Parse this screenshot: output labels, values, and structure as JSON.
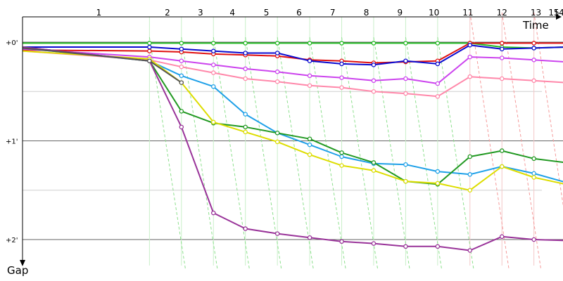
{
  "chart_data": {
    "type": "line",
    "x_axis_title": "Time",
    "y_axis_title": "Gap",
    "x_tick_labels": [
      "1",
      "2",
      "3",
      "4",
      "5",
      "6",
      "7",
      "8",
      "9",
      "10",
      "11",
      "12",
      "13",
      "15",
      "14"
    ],
    "y_tick_labels": [
      "+0'",
      "+1'",
      "+2'"
    ],
    "y_unit": "minutes",
    "ylim": [
      0,
      2.3
    ],
    "grid": true,
    "x_range": [
      0,
      16.9
    ],
    "laps": [
      {
        "label": "1",
        "x": 2.29
      },
      {
        "label": "2",
        "x": 4.35
      },
      {
        "label": "3",
        "x": 5.34
      },
      {
        "label": "4",
        "x": 6.3
      },
      {
        "label": "5",
        "x": 7.32
      },
      {
        "label": "6",
        "x": 8.3
      },
      {
        "label": "7",
        "x": 9.31
      },
      {
        "label": "8",
        "x": 10.32
      },
      {
        "label": "9",
        "x": 11.33
      },
      {
        "label": "10",
        "x": 12.35
      },
      {
        "label": "11",
        "x": 13.37
      },
      {
        "label": "12",
        "x": 14.39
      },
      {
        "label": "13",
        "x": 15.41
      },
      {
        "label": "15",
        "x": 15.95
      },
      {
        "label": "14",
        "x": 16.1
      }
    ],
    "series": [
      {
        "color": "#22bb22",
        "x": [
          0,
          3.81,
          4.77,
          5.73,
          6.69,
          7.65,
          8.62,
          9.58,
          10.54,
          11.5,
          12.46,
          13.43,
          14.39,
          15.35,
          16.3,
          16.9
        ],
        "y": [
          0.01,
          0.01,
          0.01,
          0.01,
          0.01,
          0.01,
          0.01,
          0.01,
          0.01,
          0.01,
          0.01,
          0.01,
          0.05,
          0.06,
          0.05,
          0.05
        ]
      },
      {
        "color": "#e01010",
        "x": [
          0,
          3.81,
          4.77,
          5.73,
          6.69,
          7.65,
          8.62,
          9.58,
          10.54,
          11.5,
          12.46,
          13.43,
          14.39,
          15.35,
          16.3,
          16.9
        ],
        "y": [
          0.08,
          0.09,
          0.1,
          0.12,
          0.13,
          0.14,
          0.18,
          0.19,
          0.21,
          0.2,
          0.19,
          0.01,
          0.01,
          0.01,
          0.01,
          0.01
        ]
      },
      {
        "color": "#0a0ad0",
        "x": [
          0,
          3.81,
          4.77,
          5.73,
          6.69,
          7.65,
          8.62,
          9.58,
          10.54,
          11.5,
          12.46,
          13.43,
          14.39,
          15.35,
          16.3,
          16.9
        ],
        "y": [
          0.05,
          0.05,
          0.07,
          0.09,
          0.11,
          0.11,
          0.19,
          0.22,
          0.23,
          0.19,
          0.22,
          0.03,
          0.07,
          0.06,
          0.05,
          0.05
        ]
      },
      {
        "color": "#cc44ee",
        "x": [
          0,
          3.81,
          4.77,
          5.73,
          6.69,
          7.65,
          8.62,
          9.58,
          10.54,
          11.5,
          12.46,
          13.43,
          14.39,
          15.35,
          16.3,
          16.9
        ],
        "y": [
          0.07,
          0.15,
          0.19,
          0.23,
          0.27,
          0.3,
          0.34,
          0.36,
          0.39,
          0.37,
          0.42,
          0.15,
          0.16,
          0.18,
          0.2,
          0.22
        ]
      },
      {
        "color": "#ff88aa",
        "x": [
          0,
          3.81,
          4.77,
          5.73,
          6.69,
          7.65,
          8.62,
          9.58,
          10.54,
          11.5,
          12.46,
          13.43,
          14.39,
          15.35,
          16.3,
          16.9
        ],
        "y": [
          0.09,
          0.18,
          0.25,
          0.31,
          0.37,
          0.4,
          0.44,
          0.46,
          0.5,
          0.52,
          0.55,
          0.35,
          0.37,
          0.39,
          0.41,
          0.43
        ]
      },
      {
        "color": "#1ea0e8",
        "x": [
          0,
          3.81,
          4.77,
          5.73,
          6.69,
          7.65,
          8.62,
          9.58,
          10.54,
          11.5,
          12.46,
          13.43,
          14.39,
          15.35,
          16.3,
          16.9
        ],
        "y": [
          0.06,
          0.19,
          0.34,
          0.45,
          0.73,
          0.92,
          1.04,
          1.16,
          1.23,
          1.24,
          1.31,
          1.34,
          1.26,
          1.33,
          1.42,
          1.49
        ]
      },
      {
        "color": "#229922",
        "x": [
          0,
          3.81,
          4.77,
          5.73,
          6.69,
          7.65,
          8.62,
          9.58,
          10.54,
          11.5,
          12.46,
          13.43,
          14.39,
          15.35,
          16.3,
          16.9
        ],
        "y": [
          0.05,
          0.19,
          0.7,
          0.82,
          0.86,
          0.92,
          0.98,
          1.12,
          1.22,
          1.41,
          1.44,
          1.16,
          1.1,
          1.18,
          1.22,
          1.28
        ]
      },
      {
        "color": "#dddd00",
        "x": [
          0,
          3.81,
          4.77,
          5.73,
          6.69,
          7.65,
          8.62,
          9.58,
          10.54,
          11.5,
          12.46,
          13.43,
          14.39,
          15.35,
          16.3,
          16.9
        ],
        "y": [
          0.09,
          0.17,
          0.41,
          0.81,
          0.91,
          1.01,
          1.14,
          1.25,
          1.3,
          1.41,
          1.43,
          1.5,
          1.26,
          1.37,
          1.44,
          1.5
        ]
      },
      {
        "color": "#993399",
        "x": [
          0,
          3.81,
          4.77,
          5.73,
          6.69,
          7.65,
          8.62,
          9.58,
          10.54,
          11.5,
          12.46,
          13.43,
          14.39,
          15.35,
          16.3,
          16.9
        ],
        "y": [
          0.05,
          0.19,
          0.86,
          1.73,
          1.89,
          1.94,
          1.98,
          2.02,
          2.04,
          2.07,
          2.07,
          2.11,
          1.97,
          2.0,
          2.01,
          2.02
        ]
      },
      {
        "color": "#555555",
        "x": [
          0,
          3.81,
          4.77
        ],
        "y": [
          0.06,
          0.19,
          0.41
        ]
      }
    ],
    "dashed_green_x": [
      3.81,
      4.77,
      5.73,
      6.69,
      7.65,
      8.62,
      9.58,
      10.54,
      11.5,
      12.46
    ],
    "dashed_red_x": [
      13.43,
      14.39,
      15.35,
      16.3
    ]
  }
}
